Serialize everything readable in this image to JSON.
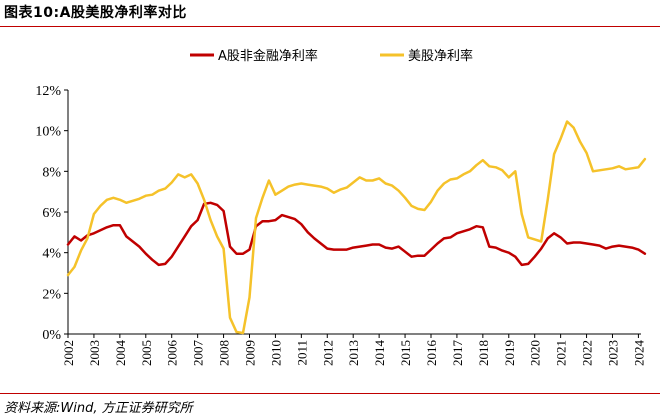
{
  "title": "图表10:A股美股净利率对比",
  "source": "资料来源:Wind, 方正证券研究所",
  "chart_data": {
    "type": "line",
    "x_ticks": [
      "2002",
      "2003",
      "2004",
      "2005",
      "2006",
      "2007",
      "2008",
      "2009",
      "2010",
      "2011",
      "2012",
      "2013",
      "2014",
      "2015",
      "2016",
      "2017",
      "2018",
      "2019",
      "2020",
      "2021",
      "2022",
      "2023",
      "2024"
    ],
    "y_ticks": [
      "0%",
      "2%",
      "4%",
      "6%",
      "8%",
      "10%",
      "12%"
    ],
    "ylim": [
      0,
      12
    ],
    "xlim": [
      2002,
      2024.1
    ],
    "grid": false,
    "legend_position": "top",
    "series": [
      {
        "name": "A股非金融净利率",
        "color": "#c00000",
        "points": [
          [
            2002.0,
            4.4
          ],
          [
            2002.25,
            4.8
          ],
          [
            2002.5,
            4.6
          ],
          [
            2002.75,
            4.85
          ],
          [
            2003.0,
            4.95
          ],
          [
            2003.25,
            5.1
          ],
          [
            2003.5,
            5.25
          ],
          [
            2003.75,
            5.35
          ],
          [
            2004.0,
            5.35
          ],
          [
            2004.25,
            4.8
          ],
          [
            2004.5,
            4.55
          ],
          [
            2004.75,
            4.3
          ],
          [
            2005.0,
            3.95
          ],
          [
            2005.25,
            3.65
          ],
          [
            2005.5,
            3.4
          ],
          [
            2005.75,
            3.45
          ],
          [
            2006.0,
            3.8
          ],
          [
            2006.25,
            4.3
          ],
          [
            2006.5,
            4.8
          ],
          [
            2006.75,
            5.3
          ],
          [
            2007.0,
            5.6
          ],
          [
            2007.25,
            6.4
          ],
          [
            2007.5,
            6.45
          ],
          [
            2007.75,
            6.35
          ],
          [
            2008.0,
            6.05
          ],
          [
            2008.25,
            4.3
          ],
          [
            2008.5,
            3.95
          ],
          [
            2008.75,
            3.95
          ],
          [
            2009.0,
            4.15
          ],
          [
            2009.25,
            5.3
          ],
          [
            2009.5,
            5.55
          ],
          [
            2009.75,
            5.55
          ],
          [
            2010.0,
            5.6
          ],
          [
            2010.25,
            5.85
          ],
          [
            2010.5,
            5.75
          ],
          [
            2010.75,
            5.65
          ],
          [
            2011.0,
            5.4
          ],
          [
            2011.25,
            5.0
          ],
          [
            2011.5,
            4.7
          ],
          [
            2011.75,
            4.45
          ],
          [
            2012.0,
            4.2
          ],
          [
            2012.25,
            4.15
          ],
          [
            2012.5,
            4.15
          ],
          [
            2012.75,
            4.15
          ],
          [
            2013.0,
            4.25
          ],
          [
            2013.25,
            4.3
          ],
          [
            2013.5,
            4.35
          ],
          [
            2013.75,
            4.4
          ],
          [
            2014.0,
            4.4
          ],
          [
            2014.25,
            4.25
          ],
          [
            2014.5,
            4.2
          ],
          [
            2014.75,
            4.3
          ],
          [
            2015.0,
            4.05
          ],
          [
            2015.25,
            3.8
          ],
          [
            2015.5,
            3.85
          ],
          [
            2015.75,
            3.85
          ],
          [
            2016.0,
            4.15
          ],
          [
            2016.25,
            4.45
          ],
          [
            2016.5,
            4.7
          ],
          [
            2016.75,
            4.75
          ],
          [
            2017.0,
            4.95
          ],
          [
            2017.25,
            5.05
          ],
          [
            2017.5,
            5.15
          ],
          [
            2017.75,
            5.3
          ],
          [
            2018.0,
            5.25
          ],
          [
            2018.25,
            4.3
          ],
          [
            2018.5,
            4.25
          ],
          [
            2018.75,
            4.1
          ],
          [
            2019.0,
            4.0
          ],
          [
            2019.25,
            3.8
          ],
          [
            2019.5,
            3.4
          ],
          [
            2019.75,
            3.45
          ],
          [
            2020.0,
            3.8
          ],
          [
            2020.25,
            4.2
          ],
          [
            2020.5,
            4.7
          ],
          [
            2020.75,
            4.95
          ],
          [
            2021.0,
            4.75
          ],
          [
            2021.25,
            4.45
          ],
          [
            2021.5,
            4.5
          ],
          [
            2021.75,
            4.5
          ],
          [
            2022.0,
            4.45
          ],
          [
            2022.25,
            4.4
          ],
          [
            2022.5,
            4.35
          ],
          [
            2022.75,
            4.2
          ],
          [
            2023.0,
            4.3
          ],
          [
            2023.25,
            4.35
          ],
          [
            2023.5,
            4.3
          ],
          [
            2023.75,
            4.25
          ],
          [
            2024.0,
            4.15
          ],
          [
            2024.25,
            3.95
          ]
        ]
      },
      {
        "name": "美股净利率",
        "color": "#f5c22a",
        "points": [
          [
            2002.0,
            2.9
          ],
          [
            2002.25,
            3.3
          ],
          [
            2002.5,
            4.1
          ],
          [
            2002.75,
            4.7
          ],
          [
            2003.0,
            5.9
          ],
          [
            2003.25,
            6.3
          ],
          [
            2003.5,
            6.6
          ],
          [
            2003.75,
            6.7
          ],
          [
            2004.0,
            6.6
          ],
          [
            2004.25,
            6.45
          ],
          [
            2004.5,
            6.55
          ],
          [
            2004.75,
            6.65
          ],
          [
            2005.0,
            6.8
          ],
          [
            2005.25,
            6.85
          ],
          [
            2005.5,
            7.05
          ],
          [
            2005.75,
            7.15
          ],
          [
            2006.0,
            7.45
          ],
          [
            2006.25,
            7.85
          ],
          [
            2006.5,
            7.7
          ],
          [
            2006.75,
            7.85
          ],
          [
            2007.0,
            7.4
          ],
          [
            2007.25,
            6.6
          ],
          [
            2007.5,
            5.6
          ],
          [
            2007.75,
            4.8
          ],
          [
            2008.0,
            4.2
          ],
          [
            2008.25,
            0.8
          ],
          [
            2008.5,
            0.1
          ],
          [
            2008.75,
            0.05
          ],
          [
            2009.0,
            1.8
          ],
          [
            2009.25,
            5.7
          ],
          [
            2009.5,
            6.7
          ],
          [
            2009.75,
            7.55
          ],
          [
            2010.0,
            6.85
          ],
          [
            2010.25,
            7.05
          ],
          [
            2010.5,
            7.25
          ],
          [
            2010.75,
            7.35
          ],
          [
            2011.0,
            7.4
          ],
          [
            2011.25,
            7.35
          ],
          [
            2011.5,
            7.3
          ],
          [
            2011.75,
            7.25
          ],
          [
            2012.0,
            7.15
          ],
          [
            2012.25,
            6.95
          ],
          [
            2012.5,
            7.1
          ],
          [
            2012.75,
            7.2
          ],
          [
            2013.0,
            7.45
          ],
          [
            2013.25,
            7.7
          ],
          [
            2013.5,
            7.55
          ],
          [
            2013.75,
            7.55
          ],
          [
            2014.0,
            7.65
          ],
          [
            2014.25,
            7.4
          ],
          [
            2014.5,
            7.3
          ],
          [
            2014.75,
            7.05
          ],
          [
            2015.0,
            6.7
          ],
          [
            2015.25,
            6.3
          ],
          [
            2015.5,
            6.15
          ],
          [
            2015.75,
            6.1
          ],
          [
            2016.0,
            6.5
          ],
          [
            2016.25,
            7.05
          ],
          [
            2016.5,
            7.4
          ],
          [
            2016.75,
            7.6
          ],
          [
            2017.0,
            7.65
          ],
          [
            2017.25,
            7.85
          ],
          [
            2017.5,
            8.0
          ],
          [
            2017.75,
            8.3
          ],
          [
            2018.0,
            8.55
          ],
          [
            2018.25,
            8.25
          ],
          [
            2018.5,
            8.2
          ],
          [
            2018.75,
            8.05
          ],
          [
            2019.0,
            7.7
          ],
          [
            2019.25,
            8.0
          ],
          [
            2019.5,
            5.9
          ],
          [
            2019.75,
            4.75
          ],
          [
            2020.0,
            4.65
          ],
          [
            2020.25,
            4.55
          ],
          [
            2020.5,
            6.6
          ],
          [
            2020.75,
            8.85
          ],
          [
            2021.0,
            9.6
          ],
          [
            2021.25,
            10.45
          ],
          [
            2021.5,
            10.15
          ],
          [
            2021.75,
            9.45
          ],
          [
            2022.0,
            8.9
          ],
          [
            2022.25,
            8.0
          ],
          [
            2022.5,
            8.05
          ],
          [
            2022.75,
            8.1
          ],
          [
            2023.0,
            8.15
          ],
          [
            2023.25,
            8.25
          ],
          [
            2023.5,
            8.1
          ],
          [
            2023.75,
            8.15
          ],
          [
            2024.0,
            8.2
          ],
          [
            2024.25,
            8.6
          ]
        ]
      }
    ]
  }
}
